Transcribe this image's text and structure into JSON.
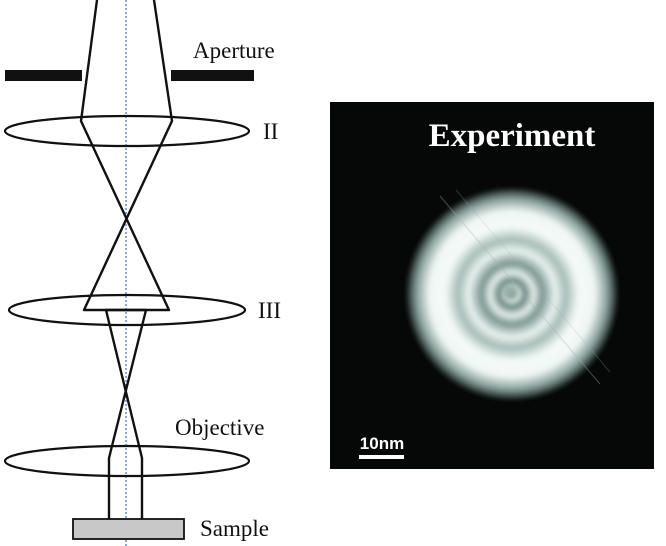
{
  "diagram": {
    "labels": {
      "aperture": "Aperture",
      "lens_2": "II",
      "lens_3": "III",
      "objective": "Objective",
      "sample": "Sample"
    }
  },
  "experiment_panel": {
    "title": "Experiment",
    "scale_bar_label": "10nm"
  },
  "colors": {
    "line": "#111111",
    "optical_axis": "#4a78c8",
    "sample_fill": "#c8c8c8",
    "panel_background": "#050807",
    "ring_color": "#e6f0ec"
  }
}
